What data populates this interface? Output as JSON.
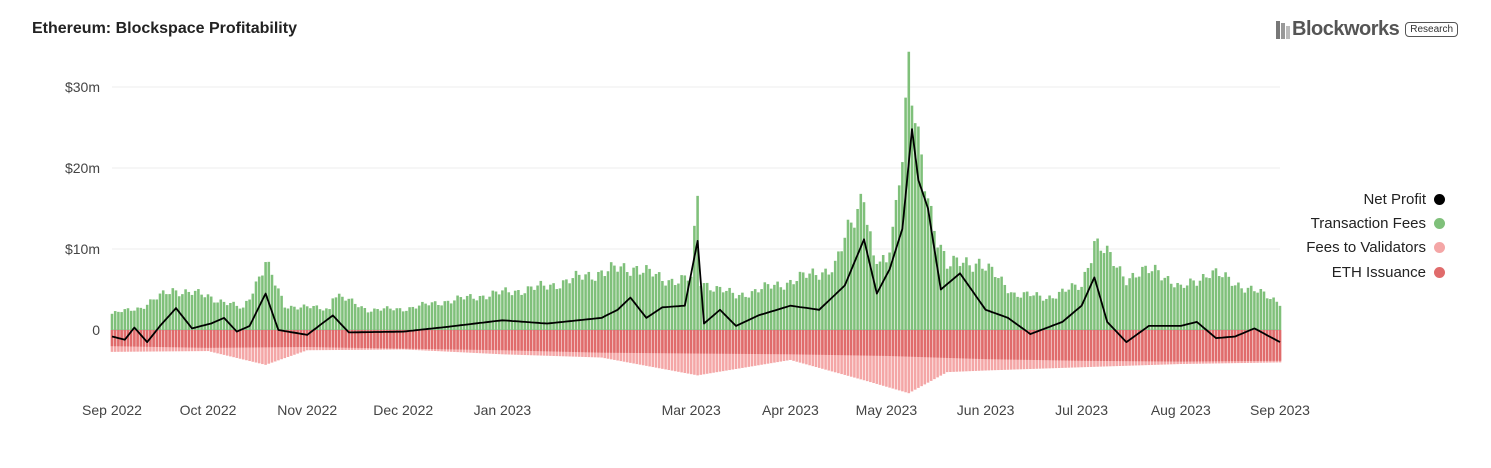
{
  "header": {
    "title": "Ethereum: Blockspace Profitability"
  },
  "brand": {
    "name": "Blockworks",
    "badge": "Research"
  },
  "legend": [
    {
      "label": "Net Profit",
      "color": "#000000"
    },
    {
      "label": "Transaction Fees",
      "color": "#7fc07a"
    },
    {
      "label": "Fees to Validators",
      "color": "#f4a6a6"
    },
    {
      "label": "ETH Issuance",
      "color": "#e06b6b"
    }
  ],
  "chart_data": {
    "type": "bar",
    "title": "Ethereum: Blockspace Profitability",
    "xlabel": "",
    "ylabel": "",
    "grid": true,
    "legend_position": "right",
    "ylim": [
      -8,
      32
    ],
    "y_ticks": [
      {
        "value": 0,
        "label": "0"
      },
      {
        "value": 10,
        "label": "$10m"
      },
      {
        "value": 20,
        "label": "$20m"
      },
      {
        "value": 30,
        "label": "$30m"
      }
    ],
    "x_start": "2022-09-01",
    "x_end": "2023-09-01",
    "x_ticks": [
      {
        "date": "2022-09-01",
        "label": "Sep 2022"
      },
      {
        "date": "2022-10-01",
        "label": "Oct 2022"
      },
      {
        "date": "2022-11-01",
        "label": "Nov 2022"
      },
      {
        "date": "2022-12-01",
        "label": "Dec 2022"
      },
      {
        "date": "2023-01-01",
        "label": "Jan 2023"
      },
      {
        "date": "2023-03-01",
        "label": "Mar 2023"
      },
      {
        "date": "2023-04-01",
        "label": "Apr 2023"
      },
      {
        "date": "2023-05-01",
        "label": "May 2023"
      },
      {
        "date": "2023-06-01",
        "label": "Jun 2023"
      },
      {
        "date": "2023-07-01",
        "label": "Jul 2023"
      },
      {
        "date": "2023-08-01",
        "label": "Aug 2023"
      },
      {
        "date": "2023-09-01",
        "label": "Sep 2023"
      }
    ],
    "series": [
      {
        "name": "Transaction Fees",
        "color": "#7fc07a",
        "points": [
          [
            "2022-09-01",
            2.0
          ],
          [
            "2022-09-10",
            2.8
          ],
          [
            "2022-09-20",
            5.0
          ],
          [
            "2022-10-01",
            4.2
          ],
          [
            "2022-10-12",
            2.6
          ],
          [
            "2022-10-19",
            8.3
          ],
          [
            "2022-10-25",
            3.0
          ],
          [
            "2022-11-08",
            2.6
          ],
          [
            "2022-11-09",
            4.5
          ],
          [
            "2022-11-20",
            2.5
          ],
          [
            "2022-12-01",
            2.6
          ],
          [
            "2022-12-15",
            3.6
          ],
          [
            "2023-01-01",
            4.6
          ],
          [
            "2023-01-15",
            5.4
          ],
          [
            "2023-02-01",
            7.2
          ],
          [
            "2023-02-12",
            7.8
          ],
          [
            "2023-02-20",
            6.2
          ],
          [
            "2023-03-01",
            6.3
          ],
          [
            "2023-03-03",
            16.3
          ],
          [
            "2023-03-04",
            6.0
          ],
          [
            "2023-03-15",
            4.2
          ],
          [
            "2023-04-01",
            6.0
          ],
          [
            "2023-04-15",
            7.8
          ],
          [
            "2023-04-24",
            17.5
          ],
          [
            "2023-04-27",
            8.5
          ],
          [
            "2023-05-01",
            8.0
          ],
          [
            "2023-05-04",
            15.5
          ],
          [
            "2023-05-08",
            32.2
          ],
          [
            "2023-05-11",
            22.0
          ],
          [
            "2023-05-15",
            14.5
          ],
          [
            "2023-05-20",
            8.0
          ],
          [
            "2023-05-30",
            8.5
          ],
          [
            "2023-06-10",
            4.5
          ],
          [
            "2023-06-20",
            4.0
          ],
          [
            "2023-07-01",
            5.5
          ],
          [
            "2023-07-05",
            11.0
          ],
          [
            "2023-07-15",
            6.5
          ],
          [
            "2023-07-25",
            7.5
          ],
          [
            "2023-08-01",
            5.0
          ],
          [
            "2023-08-10",
            7.2
          ],
          [
            "2023-08-20",
            5.5
          ],
          [
            "2023-09-01",
            3.5
          ]
        ]
      },
      {
        "name": "Fees to Validators",
        "color": "#f4a6a6",
        "points": [
          [
            "2022-09-01",
            -2.7
          ],
          [
            "2022-10-01",
            -2.6
          ],
          [
            "2022-10-19",
            -4.3
          ],
          [
            "2022-11-01",
            -2.5
          ],
          [
            "2022-12-01",
            -2.4
          ],
          [
            "2023-01-01",
            -3.0
          ],
          [
            "2023-02-01",
            -3.4
          ],
          [
            "2023-03-03",
            -5.6
          ],
          [
            "2023-04-01",
            -3.7
          ],
          [
            "2023-04-24",
            -6.2
          ],
          [
            "2023-05-08",
            -7.8
          ],
          [
            "2023-05-20",
            -5.2
          ],
          [
            "2023-06-01",
            -5.0
          ],
          [
            "2023-07-01",
            -4.6
          ],
          [
            "2023-08-01",
            -4.2
          ],
          [
            "2023-09-01",
            -4.0
          ]
        ]
      },
      {
        "name": "ETH Issuance",
        "color": "#e06b6b",
        "points": [
          [
            "2022-09-01",
            -2.0
          ],
          [
            "2022-10-01",
            -2.2
          ],
          [
            "2022-11-01",
            -2.1
          ],
          [
            "2022-12-01",
            -2.3
          ],
          [
            "2023-01-01",
            -2.5
          ],
          [
            "2023-02-01",
            -2.8
          ],
          [
            "2023-03-01",
            -2.9
          ],
          [
            "2023-04-01",
            -3.0
          ],
          [
            "2023-05-01",
            -3.2
          ],
          [
            "2023-06-01",
            -3.6
          ],
          [
            "2023-07-01",
            -3.8
          ],
          [
            "2023-08-01",
            -3.9
          ],
          [
            "2023-09-01",
            -3.8
          ]
        ]
      },
      {
        "name": "Net Profit",
        "color": "#000000",
        "points": [
          [
            "2022-09-01",
            -0.8
          ],
          [
            "2022-09-05",
            -1.2
          ],
          [
            "2022-09-08",
            0.3
          ],
          [
            "2022-09-12",
            -1.5
          ],
          [
            "2022-09-16",
            0.5
          ],
          [
            "2022-09-21",
            2.7
          ],
          [
            "2022-09-26",
            0.2
          ],
          [
            "2022-10-02",
            0.8
          ],
          [
            "2022-10-06",
            1.5
          ],
          [
            "2022-10-10",
            -0.2
          ],
          [
            "2022-10-14",
            0.5
          ],
          [
            "2022-10-19",
            4.5
          ],
          [
            "2022-10-23",
            0.0
          ],
          [
            "2022-11-01",
            -0.6
          ],
          [
            "2022-11-09",
            1.8
          ],
          [
            "2022-11-14",
            -0.3
          ],
          [
            "2022-12-01",
            -0.2
          ],
          [
            "2022-12-15",
            0.4
          ],
          [
            "2023-01-01",
            1.2
          ],
          [
            "2023-01-15",
            0.8
          ],
          [
            "2023-02-01",
            1.5
          ],
          [
            "2023-02-06",
            2.5
          ],
          [
            "2023-02-10",
            4.0
          ],
          [
            "2023-02-15",
            1.5
          ],
          [
            "2023-02-20",
            2.8
          ],
          [
            "2023-02-27",
            3.0
          ],
          [
            "2023-03-03",
            11.0
          ],
          [
            "2023-03-05",
            0.8
          ],
          [
            "2023-03-10",
            2.5
          ],
          [
            "2023-03-15",
            0.5
          ],
          [
            "2023-03-22",
            1.8
          ],
          [
            "2023-04-01",
            3.0
          ],
          [
            "2023-04-10",
            2.5
          ],
          [
            "2023-04-18",
            5.5
          ],
          [
            "2023-04-24",
            11.2
          ],
          [
            "2023-04-28",
            4.5
          ],
          [
            "2023-05-02",
            7.5
          ],
          [
            "2023-05-06",
            12.5
          ],
          [
            "2023-05-09",
            24.8
          ],
          [
            "2023-05-11",
            18.5
          ],
          [
            "2023-05-14",
            15.0
          ],
          [
            "2023-05-18",
            5.0
          ],
          [
            "2023-05-24",
            7.0
          ],
          [
            "2023-06-01",
            2.5
          ],
          [
            "2023-06-08",
            1.5
          ],
          [
            "2023-06-15",
            -0.5
          ],
          [
            "2023-06-25",
            1.0
          ],
          [
            "2023-07-01",
            3.0
          ],
          [
            "2023-07-05",
            6.5
          ],
          [
            "2023-07-09",
            1.0
          ],
          [
            "2023-07-15",
            -1.5
          ],
          [
            "2023-07-22",
            0.5
          ],
          [
            "2023-08-01",
            0.5
          ],
          [
            "2023-08-06",
            1.0
          ],
          [
            "2023-08-12",
            -1.0
          ],
          [
            "2023-08-18",
            -0.8
          ],
          [
            "2023-08-24",
            0.2
          ],
          [
            "2023-09-01",
            -1.5
          ]
        ]
      }
    ]
  }
}
